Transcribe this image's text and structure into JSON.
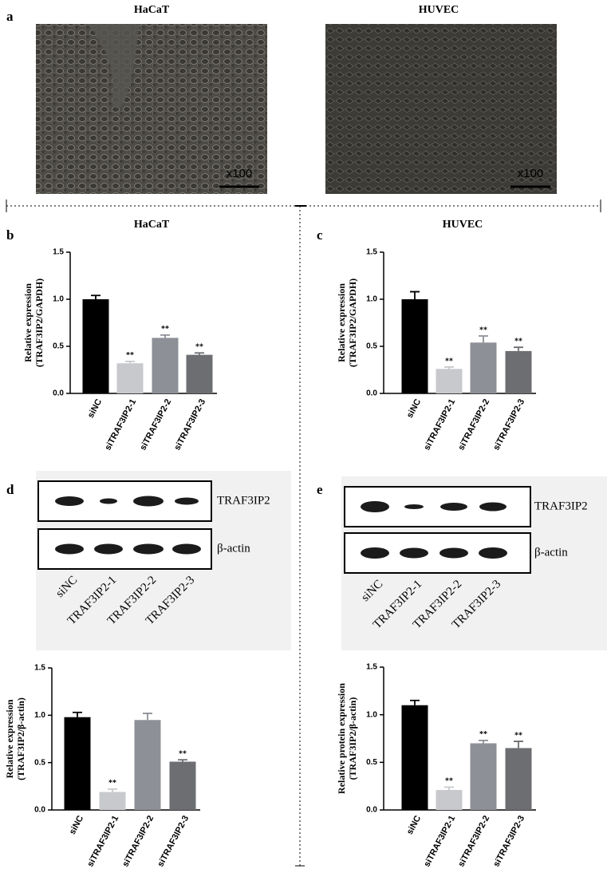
{
  "micrographs": [
    {
      "label": "a",
      "title": "HaCaT",
      "magnification": "x100"
    },
    {
      "title": "HUVEC",
      "magnification": "x100"
    }
  ],
  "blots": [
    {
      "label": "d",
      "rows": [
        "TRAF3IP2",
        "β-actin"
      ],
      "lanes": [
        "siNC",
        "TRAF3IP2-1",
        "TRAF3IP2-2",
        "TRAF3IP2-3"
      ]
    },
    {
      "label": "e",
      "rows": [
        "TRAF3IP2",
        "β-actin"
      ],
      "lanes": [
        "siNC",
        "TRAF3IP2-1",
        "TRAF3IP2-2",
        "TRAF3IP2-3"
      ]
    }
  ],
  "chart_data": [
    {
      "type": "bar",
      "label": "b",
      "title": "HaCaT",
      "ylabel": [
        "Relative expression",
        "(TRAF3IP2/GAPDH)"
      ],
      "categories": [
        "siNC",
        "siTRAF3IP2-1",
        "siTRAF3IP2-2",
        "siTRAF3IP2-3"
      ],
      "values": [
        1.0,
        0.32,
        0.59,
        0.41
      ],
      "errors": [
        0.04,
        0.02,
        0.03,
        0.02
      ],
      "significance": [
        null,
        "**",
        "**",
        "**"
      ],
      "colors": [
        "#000000",
        "#c8c9cd",
        "#8e9097",
        "#6d6e72"
      ],
      "ylim": [
        0,
        1.5
      ],
      "yticks": [
        {
          "value": 0,
          "label": "0.0"
        },
        {
          "value": 0.5,
          "label": "0.5"
        },
        {
          "value": 1.0,
          "label": "1.0"
        },
        {
          "value": 1.5,
          "label": "1.5"
        }
      ]
    },
    {
      "type": "bar",
      "label": "c",
      "title": "HUVEC",
      "ylabel": [
        "Relative expression",
        "(TRAF3IP2/GAPDH)"
      ],
      "categories": [
        "siNC",
        "siTRAF3IP2-1",
        "siTRAF3IP2-2",
        "siTRAF3IP2-3"
      ],
      "values": [
        1.0,
        0.26,
        0.54,
        0.45
      ],
      "errors": [
        0.08,
        0.02,
        0.07,
        0.04
      ],
      "significance": [
        null,
        "**",
        "**",
        "**"
      ],
      "colors": [
        "#000000",
        "#c8c9cd",
        "#8e9097",
        "#6d6e72"
      ],
      "ylim": [
        0,
        1.5
      ],
      "yticks": [
        {
          "value": 0,
          "label": "0.0"
        },
        {
          "value": 0.5,
          "label": "0.5"
        },
        {
          "value": 1.0,
          "label": "1.0"
        },
        {
          "value": 1.5,
          "label": "1.5"
        }
      ]
    },
    {
      "type": "bar",
      "ylabel": [
        "Relative expression",
        "(TRAF3IP2/β-actin)"
      ],
      "categories": [
        "siNC",
        "siTRAF3IP2-1",
        "siTRAF3IP2-2",
        "siTRAF3IP2-3"
      ],
      "values": [
        0.98,
        0.19,
        0.95,
        0.51
      ],
      "errors": [
        0.05,
        0.03,
        0.07,
        0.02
      ],
      "significance": [
        null,
        "**",
        null,
        "**"
      ],
      "colors": [
        "#000000",
        "#c8c9cd",
        "#8e9097",
        "#6d6e72"
      ],
      "ylim": [
        0,
        1.5
      ],
      "yticks": [
        {
          "value": 0,
          "label": "0.0"
        },
        {
          "value": 0.5,
          "label": "0.5"
        },
        {
          "value": 1.0,
          "label": "1.0"
        },
        {
          "value": 1.5,
          "label": "1.5"
        }
      ]
    },
    {
      "type": "bar",
      "ylabel": [
        "Relative protein expression",
        "(TRAF3IP2/β-actin)"
      ],
      "categories": [
        "siNC",
        "siTRAF3IP2-1",
        "siTRAF3IP2-2",
        "siTRAF3IP2-3"
      ],
      "values": [
        1.1,
        0.21,
        0.7,
        0.65
      ],
      "errors": [
        0.05,
        0.03,
        0.03,
        0.07
      ],
      "significance": [
        null,
        "**",
        "**",
        "**"
      ],
      "colors": [
        "#000000",
        "#c8c9cd",
        "#8e9097",
        "#6d6e72"
      ],
      "ylim": [
        0,
        1.5
      ],
      "yticks": [
        {
          "value": 0,
          "label": "0.0"
        },
        {
          "value": 0.5,
          "label": "0.5"
        },
        {
          "value": 1.0,
          "label": "1.0"
        },
        {
          "value": 1.5,
          "label": "1.5"
        }
      ]
    }
  ]
}
